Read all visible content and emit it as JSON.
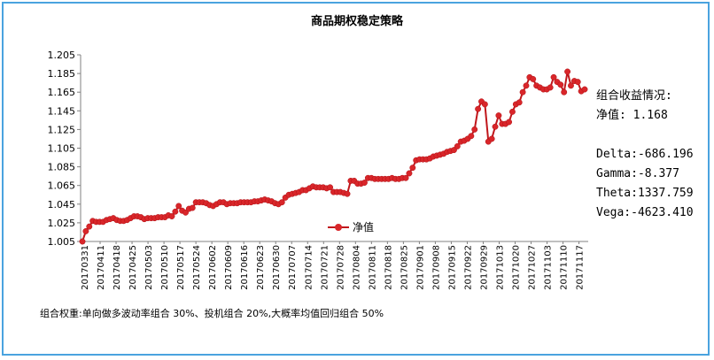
{
  "chart_data": {
    "type": "line",
    "title": "商品期权稳定策略",
    "xlabel": "",
    "ylabel": "",
    "ylim": [
      1.005,
      1.205
    ],
    "yticks": [
      "1.005",
      "1.025",
      "1.045",
      "1.065",
      "1.085",
      "1.105",
      "1.125",
      "1.145",
      "1.165",
      "1.185",
      "1.205"
    ],
    "x_tick_labels": [
      "20170331",
      "20170411",
      "20170418",
      "20170425",
      "20170503",
      "20170510",
      "20170517",
      "20170524",
      "20170602",
      "20170609",
      "20170616",
      "20170623",
      "20170630",
      "20170707",
      "20170714",
      "20170721",
      "20170728",
      "20170804",
      "20170811",
      "20170818",
      "20170825",
      "20170901",
      "20170908",
      "20170915",
      "20170922",
      "20170929",
      "20171013",
      "20171020",
      "20171027",
      "20171103",
      "20171110",
      "20171117"
    ],
    "grid": false,
    "legend_position": "bottom-center",
    "series": [
      {
        "name": "净值",
        "color": "#d9262a",
        "values": [
          1.005,
          1.016,
          1.021,
          1.027,
          1.026,
          1.026,
          1.026,
          1.028,
          1.029,
          1.03,
          1.028,
          1.027,
          1.027,
          1.028,
          1.03,
          1.032,
          1.032,
          1.031,
          1.029,
          1.03,
          1.03,
          1.03,
          1.031,
          1.031,
          1.031,
          1.033,
          1.032,
          1.037,
          1.043,
          1.038,
          1.036,
          1.04,
          1.041,
          1.047,
          1.047,
          1.047,
          1.046,
          1.044,
          1.043,
          1.045,
          1.047,
          1.047,
          1.045,
          1.046,
          1.046,
          1.046,
          1.047,
          1.047,
          1.047,
          1.047,
          1.048,
          1.048,
          1.049,
          1.05,
          1.049,
          1.048,
          1.046,
          1.045,
          1.047,
          1.052,
          1.055,
          1.056,
          1.057,
          1.058,
          1.06,
          1.06,
          1.062,
          1.064,
          1.063,
          1.063,
          1.063,
          1.062,
          1.063,
          1.058,
          1.058,
          1.058,
          1.057,
          1.056,
          1.07,
          1.07,
          1.067,
          1.067,
          1.068,
          1.073,
          1.073,
          1.072,
          1.072,
          1.072,
          1.072,
          1.072,
          1.073,
          1.072,
          1.072,
          1.073,
          1.073,
          1.078,
          1.084,
          1.092,
          1.093,
          1.093,
          1.093,
          1.094,
          1.096,
          1.097,
          1.098,
          1.099,
          1.101,
          1.102,
          1.103,
          1.107,
          1.112,
          1.113,
          1.115,
          1.118,
          1.125,
          1.147,
          1.155,
          1.152,
          1.112,
          1.115,
          1.128,
          1.14,
          1.131,
          1.131,
          1.133,
          1.144,
          1.152,
          1.154,
          1.165,
          1.172,
          1.181,
          1.179,
          1.172,
          1.17,
          1.168,
          1.168,
          1.17,
          1.181,
          1.176,
          1.173,
          1.165,
          1.187,
          1.172,
          1.177,
          1.176,
          1.166,
          1.168
        ]
      }
    ]
  },
  "stats": {
    "heading": "组合收益情况:",
    "nav": "净值: 1.168",
    "delta": "Delta:-686.196",
    "gamma": "Gamma:-8.377",
    "theta": "Theta:1337.759",
    "vega": "Vega:-4623.410"
  },
  "footnote": "组合权重:单向做多波动率组合 30%、投机组合 20%,大概率均值回归组合 50%"
}
